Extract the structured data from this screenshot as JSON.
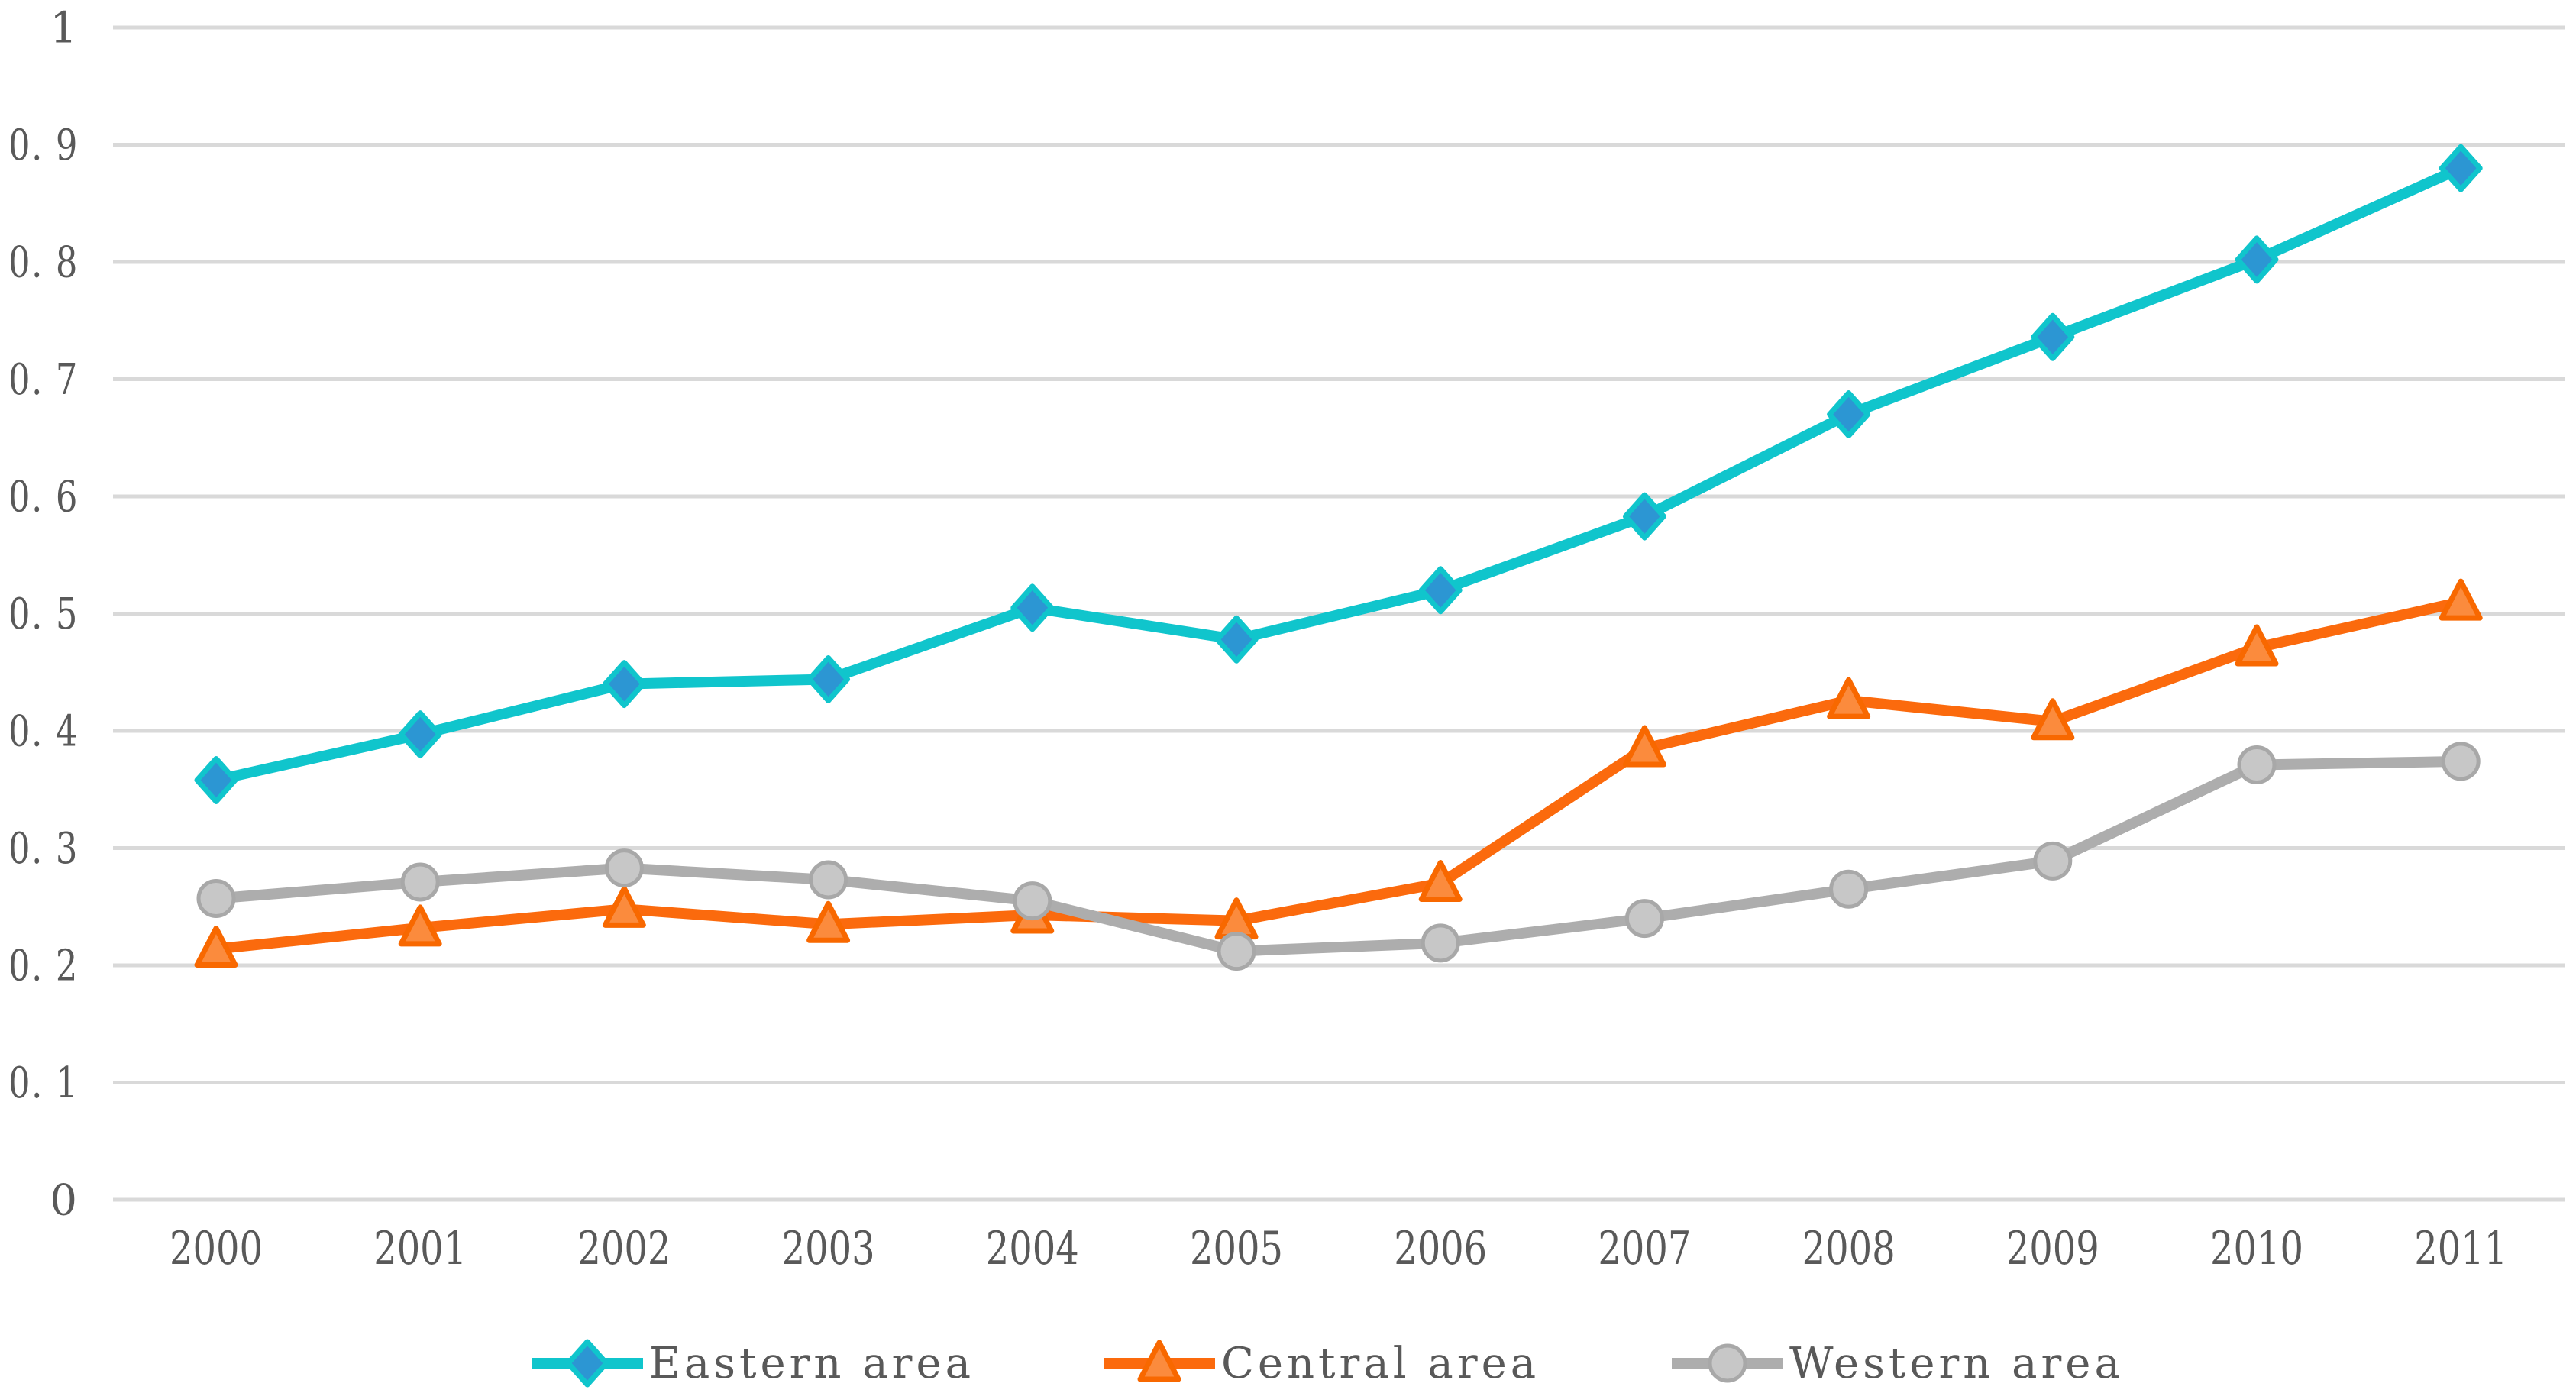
{
  "chart_data": {
    "type": "line",
    "title": "",
    "xlabel": "",
    "ylabel": "",
    "x": [
      "2000",
      "2001",
      "2002",
      "2003",
      "2004",
      "2005",
      "2006",
      "2007",
      "2008",
      "2009",
      "2010",
      "2011"
    ],
    "ylim": [
      0,
      1
    ],
    "ytick_step": 0.1,
    "ytick_labels": [
      "0",
      "0. 1",
      "0. 2",
      "0. 3",
      "0. 4",
      "0. 5",
      "0. 6",
      "0. 7",
      "0. 8",
      "0. 9",
      "1"
    ],
    "grid": true,
    "legend_position": "bottom",
    "series": [
      {
        "name": "Eastern area",
        "marker": "diamond",
        "line_color": "#10c5cc",
        "marker_fill": "#2c96d3",
        "marker_stroke": "#10c5cc",
        "values": [
          0.358,
          0.397,
          0.44,
          0.444,
          0.505,
          0.478,
          0.52,
          0.583,
          0.67,
          0.736,
          0.802,
          0.88
        ]
      },
      {
        "name": "Central area",
        "marker": "triangle",
        "line_color": "#fb6a0d",
        "marker_fill": "#fb8b3d",
        "marker_stroke": "#f86800",
        "values": [
          0.214,
          0.232,
          0.248,
          0.235,
          0.243,
          0.238,
          0.27,
          0.385,
          0.426,
          0.408,
          0.471,
          0.51
        ]
      },
      {
        "name": "Western area",
        "marker": "circle",
        "line_color": "#adadad",
        "marker_fill": "#c7c7c7",
        "marker_stroke": "#a8a8a8",
        "values": [
          0.257,
          0.271,
          0.283,
          0.273,
          0.255,
          0.212,
          0.219,
          0.24,
          0.265,
          0.289,
          0.371,
          0.374
        ]
      }
    ],
    "colors": {
      "grid": "#d9d9d9",
      "text": "#595959",
      "background": "#ffffff"
    }
  }
}
